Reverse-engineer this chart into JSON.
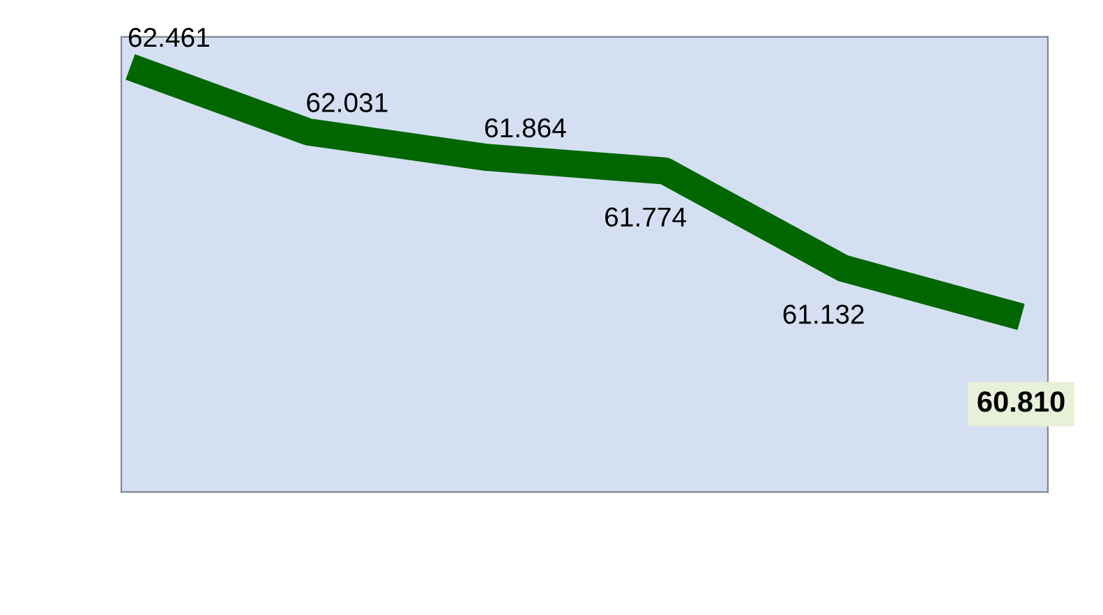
{
  "chart_data": {
    "type": "line",
    "categories": [
      null,
      null,
      null,
      null,
      null,
      null
    ],
    "series": [
      {
        "color": "#006600",
        "values": [
          62.461,
          62.031,
          61.864,
          61.774,
          61.132,
          60.81
        ],
        "value_labels": [
          "62.461",
          "62.031",
          "61.864",
          "61.774",
          "61.132",
          "60.810"
        ]
      }
    ],
    "marker": "none",
    "line_style": "solid"
  }
}
